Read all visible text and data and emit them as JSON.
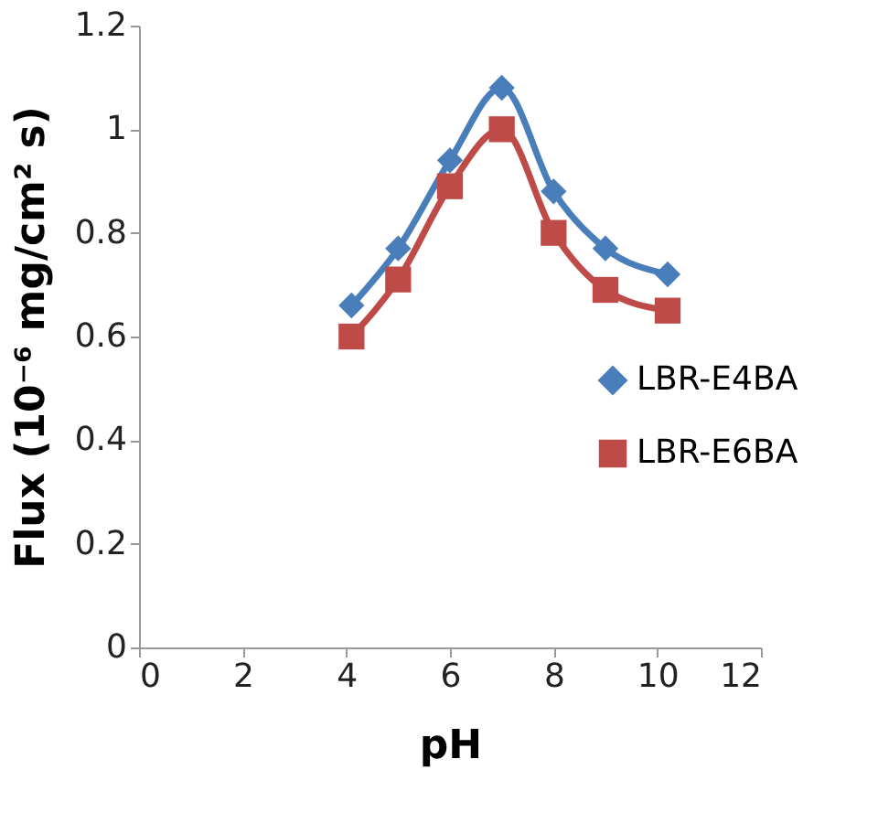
{
  "chart_data": {
    "type": "line",
    "xlabel": "pH",
    "ylabel": "Flux (10⁻⁶ mg/cm² s)",
    "x": [
      4.1,
      5,
      6,
      7,
      8,
      9,
      10.2
    ],
    "series": [
      {
        "name": "LBR-E4BA",
        "color": "#4a7ebb",
        "marker": "diamond",
        "values": [
          0.66,
          0.77,
          0.94,
          1.08,
          0.88,
          0.77,
          0.72
        ]
      },
      {
        "name": "LBR-E6BA",
        "color": "#be4b48",
        "marker": "square",
        "values": [
          0.6,
          0.71,
          0.89,
          1.0,
          0.8,
          0.69,
          0.65
        ]
      }
    ],
    "xlim": [
      0,
      12
    ],
    "xticks": [
      0,
      2,
      4,
      6,
      8,
      10,
      12
    ],
    "ylim": [
      0,
      1.2
    ],
    "yticks": [
      0,
      0.2,
      0.4,
      0.6,
      0.8,
      1,
      1.2
    ],
    "grid": false,
    "legend": "right",
    "line_style": "solid"
  }
}
